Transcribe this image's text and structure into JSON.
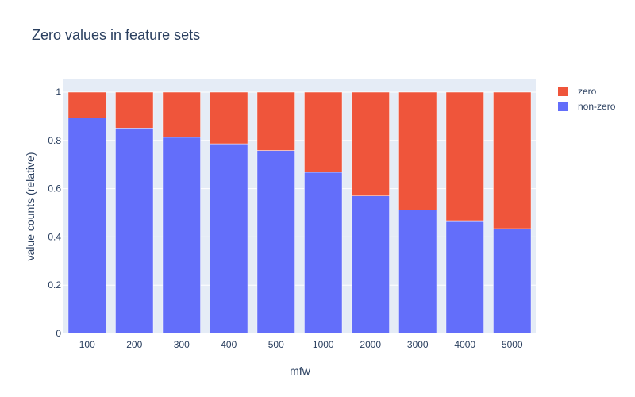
{
  "chart_data": {
    "type": "bar",
    "stacked": true,
    "title": "Zero values in feature sets",
    "xlabel": "mfw",
    "ylabel": "value counts (relative)",
    "ylim": [
      0,
      1
    ],
    "yticks": [
      0,
      0.2,
      0.4,
      0.6,
      0.8,
      1
    ],
    "ytick_labels": [
      "0",
      "0.2",
      "0.4",
      "0.6",
      "0.8",
      "1"
    ],
    "grid": true,
    "legend_position": "top-right",
    "categories": [
      "100",
      "200",
      "300",
      "400",
      "500",
      "1000",
      "2000",
      "3000",
      "4000",
      "5000"
    ],
    "series": [
      {
        "name": "non-zero",
        "color": "#636efa",
        "values": [
          0.893,
          0.851,
          0.813,
          0.786,
          0.758,
          0.668,
          0.57,
          0.512,
          0.467,
          0.434
        ]
      },
      {
        "name": "zero",
        "color": "#ef553b",
        "values": [
          0.107,
          0.149,
          0.187,
          0.214,
          0.242,
          0.332,
          0.43,
          0.488,
          0.533,
          0.566
        ]
      }
    ],
    "legend_order": [
      "zero",
      "non-zero"
    ],
    "plot_bgcolor": "#e5ecf6"
  }
}
